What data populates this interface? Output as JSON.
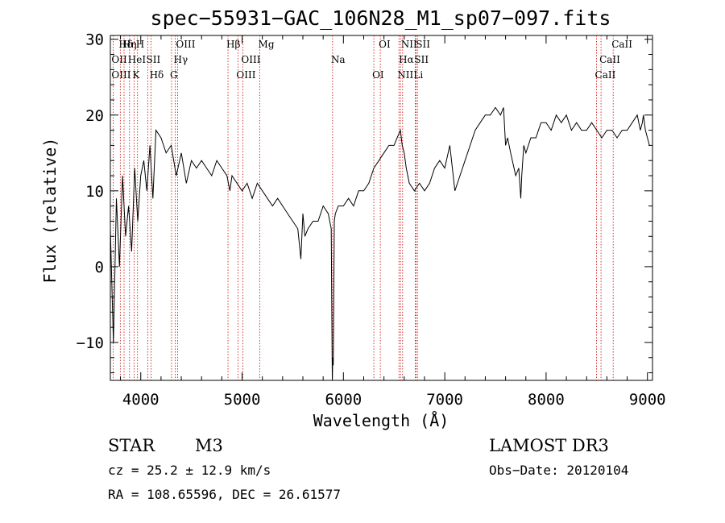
{
  "chart_data": {
    "type": "line",
    "title": "spec−55931−GAC_106N28_M1_sp07−097.fits",
    "xlabel": "Wavelength (Å)",
    "ylabel": "Flux (relative)",
    "xlim": [
      3700,
      9050
    ],
    "ylim": [
      -15,
      30.5
    ],
    "xticks": [
      4000,
      5000,
      6000,
      7000,
      8000,
      9000
    ],
    "xtick_labels": [
      "4000",
      "5000",
      "6000",
      "7000",
      "8000",
      "9000"
    ],
    "yticks": [
      -10,
      0,
      10,
      20,
      30
    ],
    "ytick_labels": [
      "−10",
      "0",
      "10",
      "20",
      "30"
    ],
    "grid": false,
    "series": [
      {
        "name": "flux",
        "color": "#000000",
        "x": [
          3700,
          3730,
          3760,
          3790,
          3820,
          3850,
          3880,
          3910,
          3940,
          3970,
          4000,
          4030,
          4060,
          4090,
          4120,
          4150,
          4200,
          4250,
          4300,
          4350,
          4400,
          4450,
          4500,
          4550,
          4600,
          4650,
          4700,
          4750,
          4800,
          4850,
          4880,
          4900,
          4950,
          5000,
          5050,
          5100,
          5150,
          5200,
          5250,
          5300,
          5350,
          5400,
          5450,
          5500,
          5550,
          5580,
          5600,
          5620,
          5650,
          5700,
          5750,
          5800,
          5850,
          5880,
          5890,
          5895,
          5900,
          5910,
          5920,
          5950,
          6000,
          6050,
          6100,
          6150,
          6200,
          6250,
          6300,
          6350,
          6400,
          6450,
          6500,
          6530,
          6563,
          6580,
          6600,
          6620,
          6650,
          6700,
          6750,
          6800,
          6850,
          6900,
          6950,
          7000,
          7050,
          7100,
          7150,
          7200,
          7250,
          7300,
          7350,
          7400,
          7450,
          7500,
          7550,
          7580,
          7600,
          7620,
          7650,
          7700,
          7730,
          7750,
          7760,
          7780,
          7800,
          7850,
          7900,
          7950,
          8000,
          8050,
          8100,
          8150,
          8200,
          8250,
          8300,
          8350,
          8400,
          8450,
          8500,
          8550,
          8600,
          8650,
          8700,
          8750,
          8800,
          8850,
          8900,
          8930,
          8950,
          8960,
          8980,
          9000,
          9020
        ],
        "y": [
          5,
          -10,
          9,
          0,
          12,
          4,
          8,
          2,
          13,
          6,
          12,
          14,
          10,
          16,
          9,
          18,
          17,
          15,
          16,
          12,
          15,
          11,
          14,
          13,
          14,
          13,
          12,
          14,
          13,
          12,
          10,
          12,
          11,
          10,
          11,
          9,
          11,
          10,
          9,
          8,
          9,
          8,
          7,
          6,
          5,
          1,
          7,
          4,
          5,
          6,
          6,
          8,
          7,
          5,
          -15,
          -12,
          -13,
          6,
          7,
          8,
          8,
          9,
          8,
          10,
          10,
          11,
          13,
          14,
          15,
          16,
          16,
          17,
          18,
          16,
          15,
          13,
          11,
          10,
          11,
          10,
          11,
          13,
          14,
          13,
          16,
          10,
          12,
          14,
          16,
          18,
          19,
          20,
          20,
          21,
          20,
          21,
          16,
          17,
          15,
          12,
          13,
          9,
          12,
          16,
          15,
          17,
          17,
          19,
          19,
          18,
          20,
          19,
          20,
          18,
          19,
          18,
          18,
          19,
          18,
          17,
          18,
          18,
          17,
          18,
          18,
          19,
          20,
          18,
          19,
          20,
          18,
          17,
          16
        ]
      }
    ],
    "spectral_lines": [
      {
        "label": "Hδ",
        "wavelength": 3798
      },
      {
        "label": "OII",
        "wavelength": 3727
      },
      {
        "label": "OIII",
        "wavelength": 3727
      },
      {
        "label": "Hη",
        "wavelength": 3835
      },
      {
        "label": "HeI",
        "wavelength": 3889
      },
      {
        "label": "K",
        "wavelength": 3934
      },
      {
        "label": "H",
        "wavelength": 3968
      },
      {
        "label": "SII",
        "wavelength": 4070
      },
      {
        "label": "Hδ",
        "wavelength": 4102
      },
      {
        "label": "OIII",
        "wavelength": 4363
      },
      {
        "label": "Hγ",
        "wavelength": 4340
      },
      {
        "label": "G",
        "wavelength": 4304
      },
      {
        "label": "Hβ",
        "wavelength": 4861
      },
      {
        "label": "OIII",
        "wavelength": 5007
      },
      {
        "label": "OIII",
        "wavelength": 4959
      },
      {
        "label": "Mg",
        "wavelength": 5175
      },
      {
        "label": "Na",
        "wavelength": 5893
      },
      {
        "label": "OI",
        "wavelength": 6300
      },
      {
        "label": "OI",
        "wavelength": 6364
      },
      {
        "label": "Hα",
        "wavelength": 6563
      },
      {
        "label": "NII",
        "wavelength": 6548
      },
      {
        "label": "NII",
        "wavelength": 6584
      },
      {
        "label": "SII",
        "wavelength": 6716
      },
      {
        "label": "Li",
        "wavelength": 6708
      },
      {
        "label": "SII",
        "wavelength": 6731
      },
      {
        "label": "CaII",
        "wavelength": 8542
      },
      {
        "label": "CaII",
        "wavelength": 8498
      },
      {
        "label": "CaII",
        "wavelength": 8662
      }
    ]
  },
  "object": {
    "class": "STAR",
    "subclass": "M3",
    "survey": "LAMOST DR3",
    "cz_line": "cz = 25.2 ± 12.9 km/s",
    "obs_date_line": "Obs−Date: 20120104",
    "coords_line": "RA = 108.65596, DEC =  26.61577"
  }
}
